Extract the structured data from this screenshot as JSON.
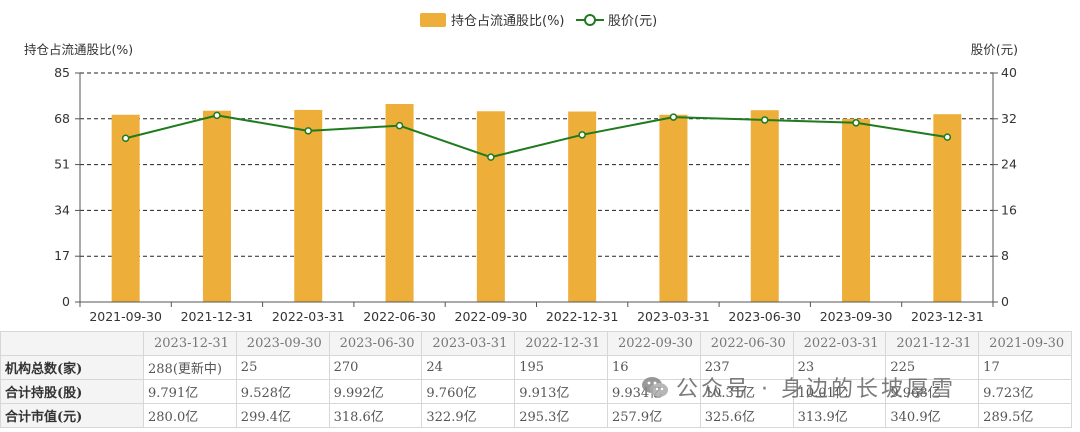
{
  "chart_data": {
    "type": "bar+line",
    "categories": [
      "2021-09-30",
      "2021-12-31",
      "2022-03-31",
      "2022-06-30",
      "2022-09-30",
      "2022-12-31",
      "2023-03-31",
      "2023-06-30",
      "2023-09-30",
      "2023-12-31"
    ],
    "series": [
      {
        "name": "持仓占流通股比(%)",
        "type": "bar",
        "axis": "left",
        "values": [
          69.5,
          71.0,
          71.3,
          73.5,
          70.8,
          70.7,
          69.5,
          71.2,
          68.0,
          69.7
        ]
      },
      {
        "name": "股价(元)",
        "type": "line",
        "axis": "right",
        "values": [
          28.6,
          32.6,
          29.9,
          30.8,
          25.3,
          29.2,
          32.3,
          31.8,
          31.3,
          28.8
        ]
      }
    ],
    "ylabel_left": "持仓占流通股比(%)",
    "ylabel_right": "股价(元)",
    "ylim_left": [
      0,
      85
    ],
    "ylim_right": [
      0,
      40
    ],
    "yticks_left": [
      "0",
      "17",
      "34",
      "51",
      "68",
      "85"
    ],
    "yticks_right": [
      "0",
      "8",
      "16",
      "24",
      "32",
      "40"
    ],
    "grid": "dashed horizontal",
    "legend": "top-center",
    "colors": {
      "bar": "#EDAE3A",
      "line": "#1E7B1E"
    }
  },
  "table": {
    "headers": [
      "2023-12-31",
      "2023-09-30",
      "2023-06-30",
      "2023-03-31",
      "2022-12-31",
      "2022-09-30",
      "2022-06-30",
      "2022-03-31",
      "2021-12-31",
      "2021-09-30"
    ],
    "rows": [
      {
        "label": "机构总数(家)",
        "cells": [
          "288(更新中)",
          "25",
          "270",
          "24",
          "195",
          "16",
          "237",
          "23",
          "225",
          "17"
        ]
      },
      {
        "label": "合计持股(股)",
        "cells": [
          "9.791亿",
          "9.528亿",
          "9.992亿",
          "9.760亿",
          "9.913亿",
          "9.934亿",
          "10.31亿",
          "10.01亿",
          "9.968亿",
          "9.723亿"
        ]
      },
      {
        "label": "合计市值(元)",
        "cells": [
          "280.0亿",
          "299.4亿",
          "318.6亿",
          "322.9亿",
          "295.3亿",
          "257.9亿",
          "325.6亿",
          "313.9亿",
          "340.9亿",
          "289.5亿"
        ]
      }
    ]
  },
  "watermark": {
    "text": "公众号 · 身边的长坡厚雪",
    "icon": "wechat-icon"
  }
}
